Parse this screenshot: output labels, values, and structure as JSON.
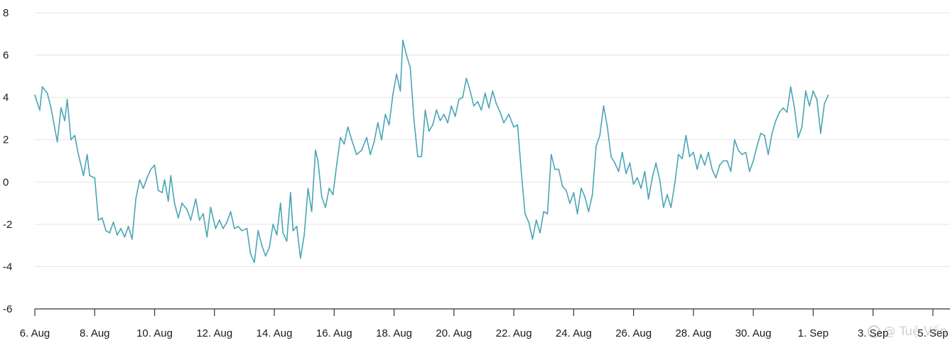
{
  "chart_data": {
    "type": "line",
    "title": "",
    "xlabel": "",
    "ylabel": "",
    "ylim": [
      -6,
      8
    ],
    "yticks": [
      8,
      6,
      4,
      2,
      0,
      -2,
      -4,
      -6
    ],
    "xlim": [
      "2024-08-06",
      "2024-09-05T08:00"
    ],
    "xtick_dates": [
      "2024-08-06",
      "2024-08-08",
      "2024-08-10",
      "2024-08-12",
      "2024-08-14",
      "2024-08-16",
      "2024-08-18",
      "2024-08-20",
      "2024-08-22",
      "2024-08-24",
      "2024-08-26",
      "2024-08-28",
      "2024-08-30",
      "2024-09-01",
      "2024-09-03",
      "2024-09-05"
    ],
    "xtick_labels": [
      "6. Aug",
      "8. Aug",
      "10. Aug",
      "12. Aug",
      "14. Aug",
      "16. Aug",
      "18. Aug",
      "20. Aug",
      "22. Aug",
      "24. Aug",
      "26. Aug",
      "28. Aug",
      "30. Aug",
      "1. Sep",
      "3. Sep",
      "5. Sep"
    ],
    "grid": true,
    "legend": "none",
    "series": [
      {
        "color": "#4aa5b5",
        "points": [
          [
            "2024-08-06T00:00",
            4.1
          ],
          [
            "2024-08-06T04:00",
            3.4
          ],
          [
            "2024-08-06T06:00",
            4.5
          ],
          [
            "2024-08-06T10:00",
            4.2
          ],
          [
            "2024-08-06T13:00",
            3.5
          ],
          [
            "2024-08-06T18:00",
            1.9
          ],
          [
            "2024-08-06T21:00",
            3.5
          ],
          [
            "2024-08-07T00:00",
            2.9
          ],
          [
            "2024-08-07T02:00",
            3.9
          ],
          [
            "2024-08-07T05:00",
            2.0
          ],
          [
            "2024-08-07T08:00",
            2.2
          ],
          [
            "2024-08-07T11:00",
            1.3
          ],
          [
            "2024-08-07T15:00",
            0.3
          ],
          [
            "2024-08-07T18:00",
            1.3
          ],
          [
            "2024-08-07T20:00",
            0.3
          ],
          [
            "2024-08-08T00:00",
            0.2
          ],
          [
            "2024-08-08T03:00",
            -1.8
          ],
          [
            "2024-08-08T06:00",
            -1.7
          ],
          [
            "2024-08-08T09:00",
            -2.3
          ],
          [
            "2024-08-08T12:00",
            -2.4
          ],
          [
            "2024-08-08T15:00",
            -1.9
          ],
          [
            "2024-08-08T18:00",
            -2.5
          ],
          [
            "2024-08-08T21:00",
            -2.2
          ],
          [
            "2024-08-09T00:00",
            -2.6
          ],
          [
            "2024-08-09T03:00",
            -2.1
          ],
          [
            "2024-08-09T06:00",
            -2.7
          ],
          [
            "2024-08-09T09:00",
            -0.8
          ],
          [
            "2024-08-09T12:00",
            0.1
          ],
          [
            "2024-08-09T15:00",
            -0.3
          ],
          [
            "2024-08-09T18:00",
            0.2
          ],
          [
            "2024-08-09T21:00",
            0.6
          ],
          [
            "2024-08-10T00:00",
            0.8
          ],
          [
            "2024-08-10T03:00",
            -0.4
          ],
          [
            "2024-08-10T06:00",
            -0.5
          ],
          [
            "2024-08-10T08:00",
            0.1
          ],
          [
            "2024-08-10T11:00",
            -0.9
          ],
          [
            "2024-08-10T13:00",
            0.3
          ],
          [
            "2024-08-10T16:00",
            -1.0
          ],
          [
            "2024-08-10T19:00",
            -1.7
          ],
          [
            "2024-08-10T22:00",
            -1.0
          ],
          [
            "2024-08-11T02:00",
            -1.3
          ],
          [
            "2024-08-11T05:00",
            -1.8
          ],
          [
            "2024-08-11T09:00",
            -0.8
          ],
          [
            "2024-08-11T12:00",
            -1.8
          ],
          [
            "2024-08-11T15:00",
            -1.5
          ],
          [
            "2024-08-11T18:00",
            -2.6
          ],
          [
            "2024-08-11T21:00",
            -1.2
          ],
          [
            "2024-08-12T01:00",
            -2.2
          ],
          [
            "2024-08-12T04:00",
            -1.8
          ],
          [
            "2024-08-12T07:00",
            -2.2
          ],
          [
            "2024-08-12T10:00",
            -1.9
          ],
          [
            "2024-08-12T13:00",
            -1.4
          ],
          [
            "2024-08-12T16:00",
            -2.2
          ],
          [
            "2024-08-12T19:00",
            -2.1
          ],
          [
            "2024-08-12T22:00",
            -2.3
          ],
          [
            "2024-08-13T02:00",
            -2.2
          ],
          [
            "2024-08-13T05:00",
            -3.4
          ],
          [
            "2024-08-13T08:00",
            -3.8
          ],
          [
            "2024-08-13T11:00",
            -2.3
          ],
          [
            "2024-08-13T14:00",
            -3.0
          ],
          [
            "2024-08-13T17:00",
            -3.5
          ],
          [
            "2024-08-13T20:00",
            -3.1
          ],
          [
            "2024-08-13T23:00",
            -2.0
          ],
          [
            "2024-08-14T02:00",
            -2.5
          ],
          [
            "2024-08-14T05:00",
            -1.0
          ],
          [
            "2024-08-14T07:00",
            -2.4
          ],
          [
            "2024-08-14T10:00",
            -2.8
          ],
          [
            "2024-08-14T13:00",
            -0.5
          ],
          [
            "2024-08-14T15:00",
            -2.3
          ],
          [
            "2024-08-14T18:00",
            -2.1
          ],
          [
            "2024-08-14T21:00",
            -3.6
          ],
          [
            "2024-08-15T00:00",
            -2.5
          ],
          [
            "2024-08-15T03:00",
            -0.3
          ],
          [
            "2024-08-15T06:00",
            -1.4
          ],
          [
            "2024-08-15T09:00",
            1.5
          ],
          [
            "2024-08-15T11:00",
            1.0
          ],
          [
            "2024-08-15T14:00",
            -0.7
          ],
          [
            "2024-08-15T17:00",
            -1.2
          ],
          [
            "2024-08-15T20:00",
            -0.3
          ],
          [
            "2024-08-15T23:00",
            -0.6
          ],
          [
            "2024-08-16T02:00",
            0.8
          ],
          [
            "2024-08-16T05:00",
            2.1
          ],
          [
            "2024-08-16T08:00",
            1.8
          ],
          [
            "2024-08-16T11:00",
            2.6
          ],
          [
            "2024-08-16T14:00",
            2.0
          ],
          [
            "2024-08-16T18:00",
            1.3
          ],
          [
            "2024-08-16T22:00",
            1.5
          ],
          [
            "2024-08-17T02:00",
            2.1
          ],
          [
            "2024-08-17T05:00",
            1.3
          ],
          [
            "2024-08-17T08:00",
            1.9
          ],
          [
            "2024-08-17T11:00",
            2.8
          ],
          [
            "2024-08-17T14:00",
            2.0
          ],
          [
            "2024-08-17T17:00",
            3.2
          ],
          [
            "2024-08-17T20:00",
            2.7
          ],
          [
            "2024-08-17T23:00",
            4.1
          ],
          [
            "2024-08-18T02:00",
            5.1
          ],
          [
            "2024-08-18T05:00",
            4.3
          ],
          [
            "2024-08-18T07:00",
            6.7
          ],
          [
            "2024-08-18T10:00",
            6.0
          ],
          [
            "2024-08-18T13:00",
            5.4
          ],
          [
            "2024-08-18T16:00",
            2.9
          ],
          [
            "2024-08-18T19:00",
            1.2
          ],
          [
            "2024-08-18T22:00",
            1.2
          ],
          [
            "2024-08-19T01:00",
            3.4
          ],
          [
            "2024-08-19T04:00",
            2.4
          ],
          [
            "2024-08-19T07:00",
            2.7
          ],
          [
            "2024-08-19T10:00",
            3.4
          ],
          [
            "2024-08-19T13:00",
            2.9
          ],
          [
            "2024-08-19T16:00",
            3.2
          ],
          [
            "2024-08-19T19:00",
            2.8
          ],
          [
            "2024-08-19T22:00",
            3.6
          ],
          [
            "2024-08-20T01:00",
            3.1
          ],
          [
            "2024-08-20T04:00",
            3.9
          ],
          [
            "2024-08-20T07:00",
            4.0
          ],
          [
            "2024-08-20T10:00",
            4.9
          ],
          [
            "2024-08-20T13:00",
            4.3
          ],
          [
            "2024-08-20T16:00",
            3.6
          ],
          [
            "2024-08-20T19:00",
            3.8
          ],
          [
            "2024-08-20T22:00",
            3.4
          ],
          [
            "2024-08-21T01:00",
            4.2
          ],
          [
            "2024-08-21T04:00",
            3.5
          ],
          [
            "2024-08-21T07:00",
            4.3
          ],
          [
            "2024-08-21T10:00",
            3.7
          ],
          [
            "2024-08-21T13:00",
            3.3
          ],
          [
            "2024-08-21T16:00",
            2.8
          ],
          [
            "2024-08-21T20:00",
            3.2
          ],
          [
            "2024-08-22T00:00",
            2.6
          ],
          [
            "2024-08-22T03:00",
            2.7
          ],
          [
            "2024-08-22T06:00",
            0.5
          ],
          [
            "2024-08-22T09:00",
            -1.5
          ],
          [
            "2024-08-22T12:00",
            -1.9
          ],
          [
            "2024-08-22T15:00",
            -2.7
          ],
          [
            "2024-08-22T18:00",
            -1.8
          ],
          [
            "2024-08-22T21:00",
            -2.4
          ],
          [
            "2024-08-23T00:00",
            -1.4
          ],
          [
            "2024-08-23T03:00",
            -1.5
          ],
          [
            "2024-08-23T06:00",
            1.3
          ],
          [
            "2024-08-23T09:00",
            0.6
          ],
          [
            "2024-08-23T12:00",
            0.6
          ],
          [
            "2024-08-23T15:00",
            -0.2
          ],
          [
            "2024-08-23T18:00",
            -0.4
          ],
          [
            "2024-08-23T21:00",
            -1.0
          ],
          [
            "2024-08-24T00:00",
            -0.5
          ],
          [
            "2024-08-24T03:00",
            -1.5
          ],
          [
            "2024-08-24T06:00",
            -0.3
          ],
          [
            "2024-08-24T09:00",
            -0.7
          ],
          [
            "2024-08-24T12:00",
            -1.4
          ],
          [
            "2024-08-24T15:00",
            -0.6
          ],
          [
            "2024-08-24T18:00",
            1.7
          ],
          [
            "2024-08-24T21:00",
            2.2
          ],
          [
            "2024-08-25T00:00",
            3.6
          ],
          [
            "2024-08-25T03:00",
            2.6
          ],
          [
            "2024-08-25T06:00",
            1.2
          ],
          [
            "2024-08-25T09:00",
            0.9
          ],
          [
            "2024-08-25T12:00",
            0.5
          ],
          [
            "2024-08-25T15:00",
            1.4
          ],
          [
            "2024-08-25T18:00",
            0.4
          ],
          [
            "2024-08-25T21:00",
            0.9
          ],
          [
            "2024-08-26T00:00",
            -0.1
          ],
          [
            "2024-08-26T03:00",
            0.2
          ],
          [
            "2024-08-26T06:00",
            -0.3
          ],
          [
            "2024-08-26T09:00",
            0.5
          ],
          [
            "2024-08-26T12:00",
            -0.8
          ],
          [
            "2024-08-26T15:00",
            0.2
          ],
          [
            "2024-08-26T18:00",
            0.9
          ],
          [
            "2024-08-26T21:00",
            0.1
          ],
          [
            "2024-08-27T00:00",
            -1.2
          ],
          [
            "2024-08-27T03:00",
            -0.6
          ],
          [
            "2024-08-27T06:00",
            -1.2
          ],
          [
            "2024-08-27T09:00",
            -0.1
          ],
          [
            "2024-08-27T12:00",
            1.3
          ],
          [
            "2024-08-27T15:00",
            1.1
          ],
          [
            "2024-08-27T18:00",
            2.2
          ],
          [
            "2024-08-27T21:00",
            1.2
          ],
          [
            "2024-08-28T00:00",
            1.4
          ],
          [
            "2024-08-28T03:00",
            0.6
          ],
          [
            "2024-08-28T06:00",
            1.3
          ],
          [
            "2024-08-28T09:00",
            0.8
          ],
          [
            "2024-08-28T12:00",
            1.4
          ],
          [
            "2024-08-28T15:00",
            0.6
          ],
          [
            "2024-08-28T18:00",
            0.2
          ],
          [
            "2024-08-28T21:00",
            0.8
          ],
          [
            "2024-08-29T00:00",
            1.0
          ],
          [
            "2024-08-29T03:00",
            1.0
          ],
          [
            "2024-08-29T06:00",
            0.5
          ],
          [
            "2024-08-29T09:00",
            2.0
          ],
          [
            "2024-08-29T12:00",
            1.5
          ],
          [
            "2024-08-29T15:00",
            1.3
          ],
          [
            "2024-08-29T18:00",
            1.4
          ],
          [
            "2024-08-29T21:00",
            0.5
          ],
          [
            "2024-08-30T00:00",
            1.0
          ],
          [
            "2024-08-30T03:00",
            1.7
          ],
          [
            "2024-08-30T06:00",
            2.3
          ],
          [
            "2024-08-30T09:00",
            2.2
          ],
          [
            "2024-08-30T12:00",
            1.3
          ],
          [
            "2024-08-30T15:00",
            2.3
          ],
          [
            "2024-08-30T18:00",
            2.9
          ],
          [
            "2024-08-30T21:00",
            3.3
          ],
          [
            "2024-08-31T00:00",
            3.5
          ],
          [
            "2024-08-31T03:00",
            3.3
          ],
          [
            "2024-08-31T06:00",
            4.5
          ],
          [
            "2024-08-31T09:00",
            3.5
          ],
          [
            "2024-08-31T12:00",
            2.1
          ],
          [
            "2024-08-31T15:00",
            2.6
          ],
          [
            "2024-08-31T18:00",
            4.3
          ],
          [
            "2024-08-31T21:00",
            3.6
          ],
          [
            "2024-09-01T00:00",
            4.3
          ],
          [
            "2024-09-01T03:00",
            3.9
          ],
          [
            "2024-09-01T06:00",
            2.3
          ],
          [
            "2024-09-01T09:00",
            3.7
          ],
          [
            "2024-09-01T12:00",
            4.1
          ]
        ]
      }
    ]
  },
  "watermark": "@ Tuệ Vấn"
}
